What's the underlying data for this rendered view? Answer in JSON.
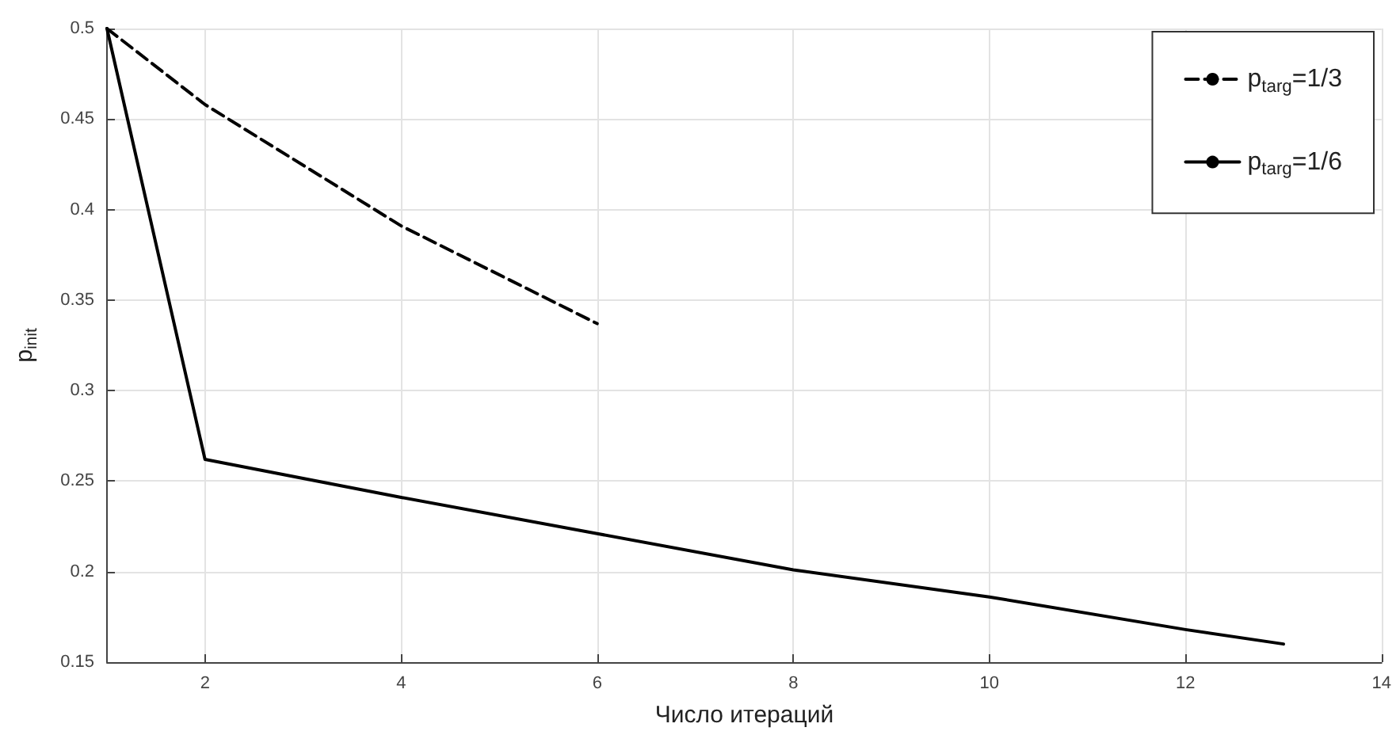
{
  "chart_data": {
    "type": "line",
    "xlabel": "Число итераций",
    "ylabel": "p$_{init}$",
    "xlim": [
      1,
      14
    ],
    "xticks": [
      2,
      4,
      6,
      8,
      10,
      12,
      14
    ],
    "ylim": [
      0.15,
      0.5
    ],
    "yticks": [
      0.15,
      0.2,
      0.25,
      0.3,
      0.35,
      0.4,
      0.45,
      0.5
    ],
    "grid": true,
    "legend": "top right",
    "marker": "none",
    "series": [
      {
        "name": "p$_{targ}$=1/3",
        "color": "#000000",
        "line_style": "dashed",
        "x": [
          1,
          2,
          4,
          6
        ],
        "values": [
          0.5,
          0.458,
          0.391,
          0.337
        ]
      },
      {
        "name": "p$_{targ}$=1/6",
        "color": "#000000",
        "line_style": "solid",
        "x": [
          1,
          2,
          4,
          6,
          8,
          10,
          12,
          13
        ],
        "values": [
          0.5,
          0.262,
          0.241,
          0.221,
          0.201,
          0.186,
          0.168,
          0.16
        ]
      }
    ]
  }
}
